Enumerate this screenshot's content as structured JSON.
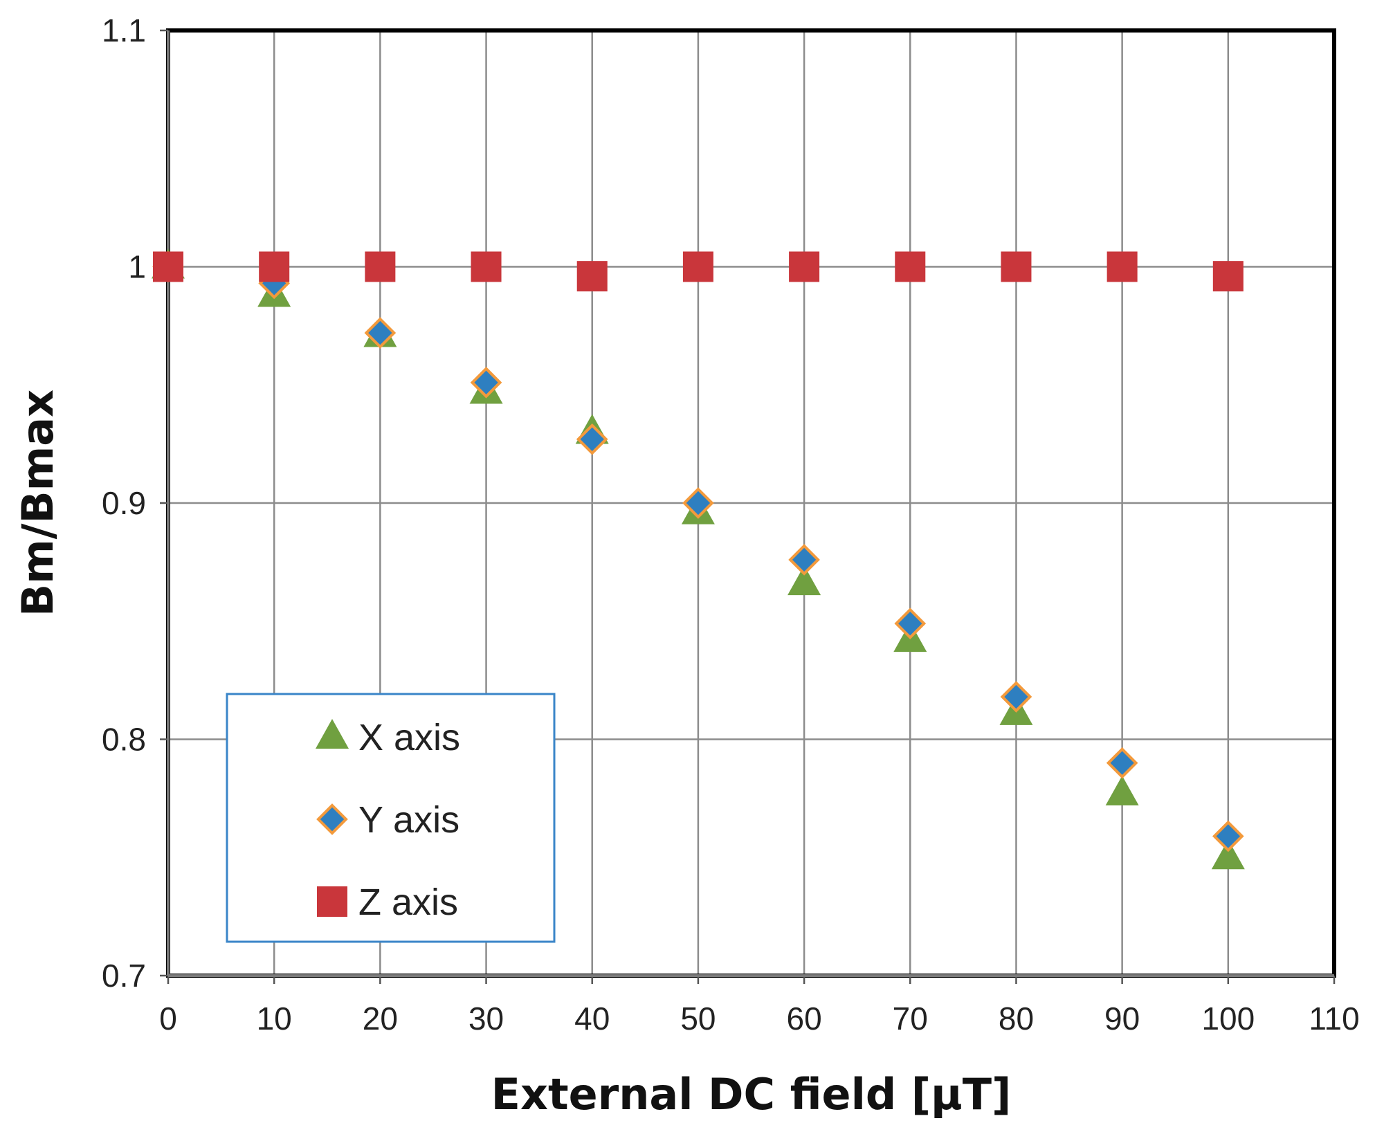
{
  "chart_data": {
    "type": "scatter",
    "title": "",
    "xlabel": "External DC field [μT]",
    "ylabel": "Bm/Bmax",
    "xlim": [
      0,
      110
    ],
    "ylim": [
      0.7,
      1.1
    ],
    "xticks": [
      0,
      10,
      20,
      30,
      40,
      50,
      60,
      70,
      80,
      90,
      100,
      110
    ],
    "yticks": [
      0.7,
      0.8,
      0.9,
      1,
      1.1
    ],
    "ytick_labels": [
      "0.7",
      "0.8",
      "0.9",
      "1",
      "1.1"
    ],
    "grid": true,
    "legend_position": "bottom-left",
    "x": [
      0,
      10,
      20,
      30,
      40,
      50,
      60,
      70,
      80,
      90,
      100
    ],
    "series": [
      {
        "name": "X axis",
        "marker": "triangle",
        "color": "#70a040",
        "values": [
          1.0,
          0.988,
          0.971,
          0.947,
          0.93,
          0.896,
          0.866,
          0.842,
          0.811,
          0.777,
          0.75
        ]
      },
      {
        "name": "Y axis",
        "marker": "diamond",
        "color": "#2e7fc0",
        "edge_color": "#f39a3c",
        "values": [
          1.0,
          0.993,
          0.972,
          0.951,
          0.927,
          0.9,
          0.876,
          0.849,
          0.818,
          0.79,
          0.759
        ]
      },
      {
        "name": "Z axis",
        "marker": "square",
        "color": "#c9363b",
        "values": [
          1.0,
          1.0,
          1.0,
          1.0,
          0.996,
          1.0,
          1.0,
          1.0,
          1.0,
          1.0,
          0.996
        ]
      }
    ]
  }
}
